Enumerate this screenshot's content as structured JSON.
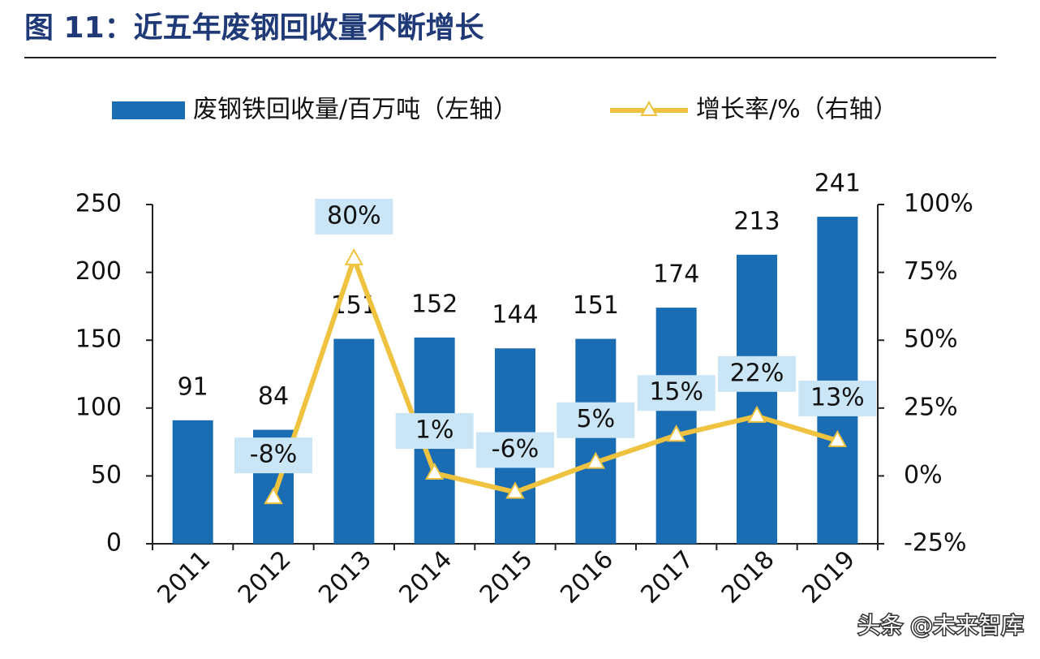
{
  "chart_data": {
    "type": "bar-line",
    "title": "图 11：近五年废钢回收量不断增长",
    "categories": [
      "2011",
      "2012",
      "2013",
      "2014",
      "2015",
      "2016",
      "2017",
      "2018",
      "2019"
    ],
    "series": [
      {
        "name": "废钢铁回收量/百万吨（左轴）",
        "type": "bar",
        "color": "#1a6db3",
        "values": [
          91,
          84,
          151,
          152,
          144,
          151,
          174,
          213,
          241
        ]
      },
      {
        "name": "增长率/%（右轴）",
        "type": "line",
        "axis": "y2",
        "color": "#efc23f",
        "values": [
          null,
          -8,
          80,
          1,
          -6,
          5,
          15,
          22,
          13
        ],
        "value_labels": [
          null,
          "-8%",
          "80%",
          "1%",
          "-6%",
          "5%",
          "15%",
          "22%",
          "13%"
        ]
      }
    ],
    "ylim": [
      0,
      250
    ],
    "yticks": [
      0,
      50,
      100,
      150,
      200,
      250
    ],
    "y2lim": [
      -25,
      100
    ],
    "y2ticks": [
      {
        "value": -25,
        "label": "-25%"
      },
      {
        "value": 0,
        "label": "0%"
      },
      {
        "value": 25,
        "label": "25%"
      },
      {
        "value": 50,
        "label": "50%"
      },
      {
        "value": 75,
        "label": "75%"
      },
      {
        "value": 100,
        "label": "100%"
      }
    ],
    "grid": false,
    "watermark": "头条 @未来智库"
  }
}
